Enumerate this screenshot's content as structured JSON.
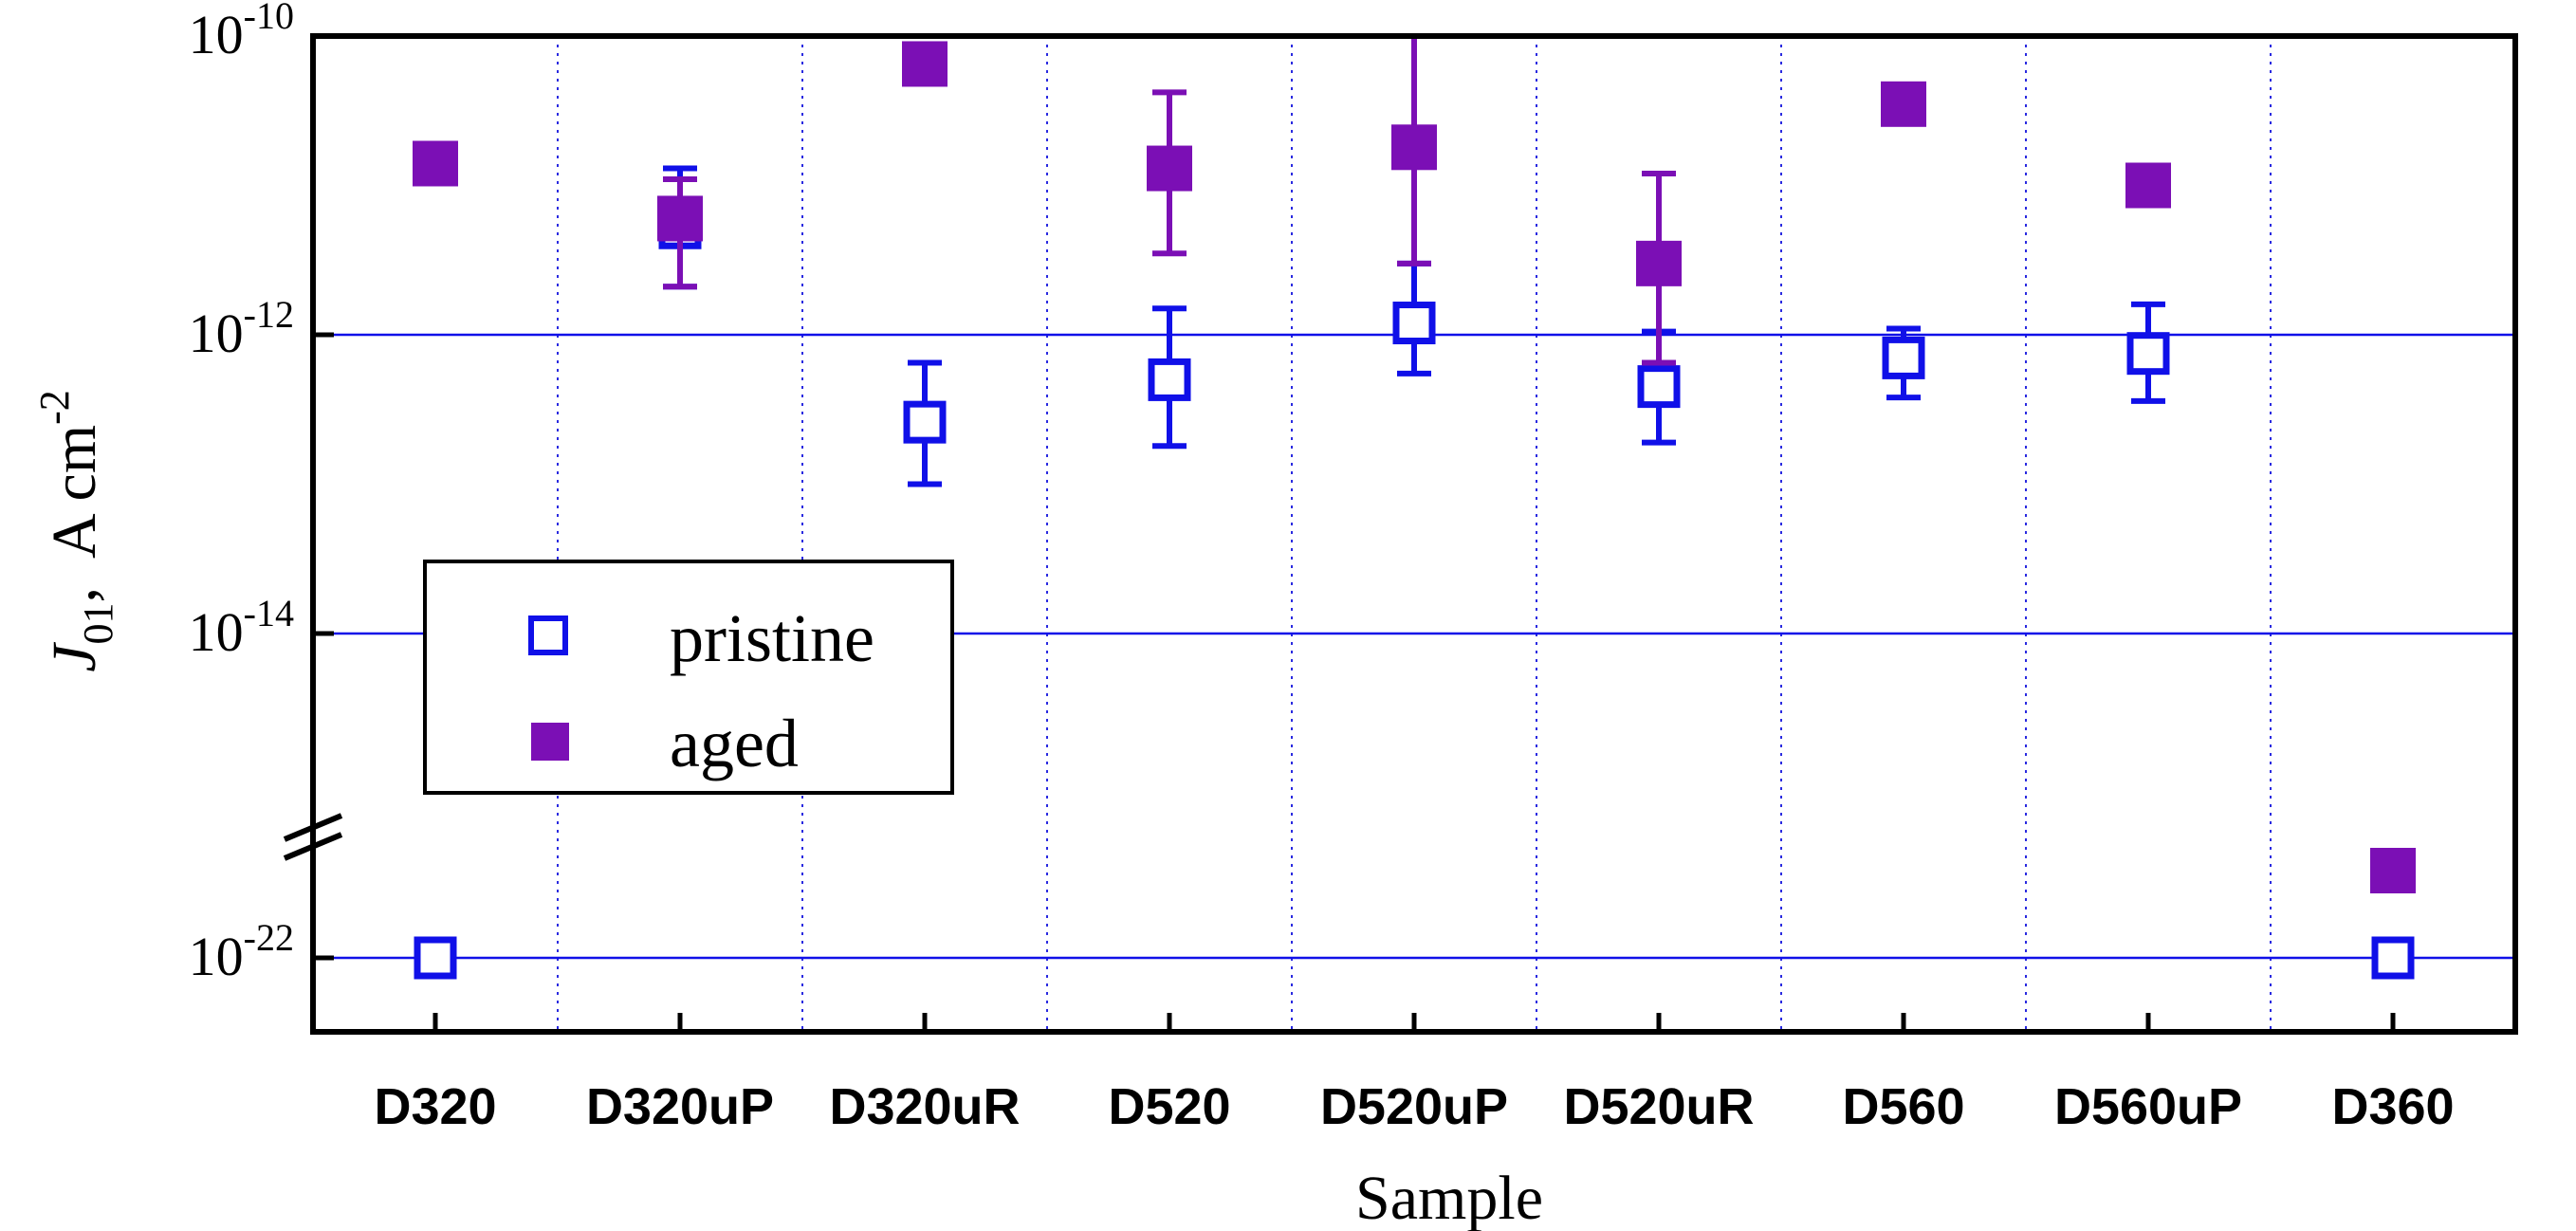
{
  "chart_data": {
    "type": "scatter",
    "categories": [
      "D320",
      "D320uP",
      "D320uR",
      "D520",
      "D520uP",
      "D520uR",
      "D560",
      "D560uP",
      "D360"
    ],
    "xlabel": "Sample",
    "ylabel": {
      "symbol": "J",
      "subscript": "01",
      "sep": ",",
      "unit": "A cm",
      "unit_exp": "-2"
    },
    "yscale": "log (broken axis)",
    "ylim": [
      1e-23,
      1e-10
    ],
    "y_break": [
      1e-15,
      1e-21
    ],
    "yticks": [
      {
        "value": 1e-10,
        "base": "10",
        "exp": "-10"
      },
      {
        "value": 1e-12,
        "base": "10",
        "exp": "-12"
      },
      {
        "value": 1e-14,
        "base": "10",
        "exp": "-14"
      },
      {
        "value": 1e-22,
        "base": "10",
        "exp": "-22"
      }
    ],
    "grid": {
      "horizontal": "solid",
      "vertical": "dotted"
    },
    "legend_position": "center-left",
    "series": [
      {
        "name": "pristine",
        "marker": "open-square",
        "color": "#1010e8",
        "points": [
          {
            "x": "D320",
            "y": 1e-22
          },
          {
            "x": "D320uP",
            "y": 5.2e-12,
            "err_low": 2.1e-12,
            "err_high": 1.3e-11
          },
          {
            "x": "D320uR",
            "y": 2.6e-13,
            "err_low": 1e-13,
            "err_high": 6.5e-13
          },
          {
            "x": "D520",
            "y": 5e-13,
            "err_low": 1.8e-13,
            "err_high": 1.5e-12
          },
          {
            "x": "D520uP",
            "y": 1.2e-12,
            "err_low": 5.5e-13,
            "err_high": 3e-12
          },
          {
            "x": "D520uR",
            "y": 4.5e-13,
            "err_low": 1.9e-13,
            "err_high": 1.05e-12
          },
          {
            "x": "D560",
            "y": 7e-13,
            "err_low": 3.8e-13,
            "err_high": 1.1e-12
          },
          {
            "x": "D560uP",
            "y": 7.5e-13,
            "err_low": 3.6e-13,
            "err_high": 1.6e-12
          },
          {
            "x": "D360",
            "y": 1e-22
          }
        ]
      },
      {
        "name": "aged",
        "marker": "filled-square",
        "color": "#7b0fb5",
        "points": [
          {
            "x": "D320",
            "y": 1.4e-11
          },
          {
            "x": "D320uP",
            "y": 6e-12,
            "err_low": 2.1e-12,
            "err_high": 1.1e-11
          },
          {
            "x": "D320uR",
            "y": 6.5e-11
          },
          {
            "x": "D520",
            "y": 1.3e-11,
            "err_low": 3.5e-12,
            "err_high": 4.2e-11
          },
          {
            "x": "D520uP",
            "y": 1.8e-11,
            "err_low": 3e-12,
            "err_high": 1e-10
          },
          {
            "x": "D520uR",
            "y": 3e-12,
            "err_low": 6.5e-13,
            "err_high": 1.2e-11
          },
          {
            "x": "D560",
            "y": 3.5e-11
          },
          {
            "x": "D560uP",
            "y": 1e-11,
            "err_low": 7.5e-12,
            "err_high": 1.2e-11
          },
          {
            "x": "D360",
            "y": 1e-18
          }
        ]
      }
    ]
  }
}
